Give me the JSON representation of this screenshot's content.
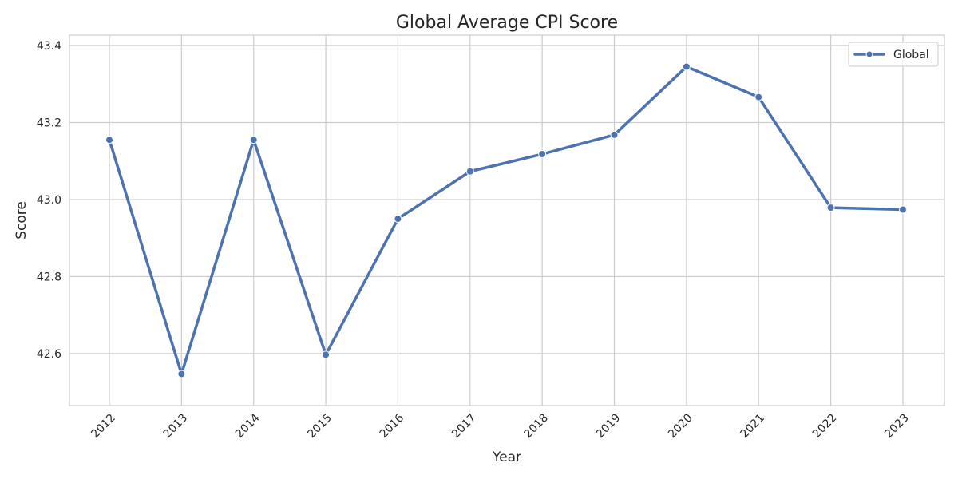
{
  "chart_data": {
    "type": "line",
    "title": "Global Average CPI Score",
    "xlabel": "Year",
    "ylabel": "Score",
    "x": [
      "2012",
      "2013",
      "2014",
      "2015",
      "2016",
      "2017",
      "2018",
      "2019",
      "2020",
      "2021",
      "2022",
      "2023"
    ],
    "series": [
      {
        "name": "Global",
        "color": "#4c72b0",
        "values": [
          43.155,
          42.547,
          43.155,
          42.597,
          42.95,
          43.073,
          43.118,
          43.168,
          43.345,
          43.266,
          42.979,
          42.974
        ]
      }
    ],
    "yticks": [
      42.6,
      42.8,
      43.0,
      43.2,
      43.4
    ],
    "ytick_labels": [
      "42.6",
      "42.8",
      "43.0",
      "43.2",
      "43.4"
    ],
    "ylim": [
      42.465,
      43.427
    ],
    "grid": true,
    "legend_position": "top-right"
  }
}
